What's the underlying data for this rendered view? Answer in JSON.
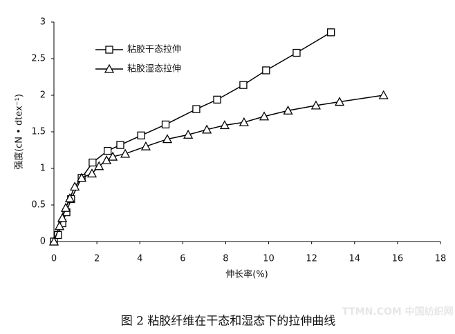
{
  "chart_data": {
    "type": "line",
    "xlabel": "伸长率(%)",
    "ylabel": "强度(cN • dtex⁻¹)",
    "caption": "图 2 粘胶纤维在干态和湿态下的拉伸曲线",
    "watermark": "TTMN.COM 中国纺织网",
    "xlim": [
      0,
      18
    ],
    "xticks": [
      0,
      2,
      4,
      6,
      8,
      10,
      12,
      14,
      16,
      18
    ],
    "ylim": [
      0,
      3
    ],
    "yticks": [
      0,
      0.5,
      1,
      1.5,
      2,
      2.5,
      3
    ],
    "series": [
      {
        "name": "粘胶干态拉伸",
        "color": "#000000",
        "marker": "square",
        "x": [
          0,
          0.19,
          0.39,
          0.58,
          0.8,
          1.29,
          1.8,
          2.5,
          3.09,
          4.06,
          5.2,
          6.63,
          7.6,
          8.82,
          9.88,
          11.3,
          12.9
        ],
        "values": [
          0,
          0.09,
          0.25,
          0.4,
          0.58,
          0.87,
          1.08,
          1.24,
          1.32,
          1.45,
          1.6,
          1.81,
          1.94,
          2.14,
          2.34,
          2.58,
          2.86
        ]
      },
      {
        "name": "粘胶湿态拉伸",
        "color": "#000000",
        "marker": "triangle",
        "x": [
          0,
          0.26,
          0.39,
          0.55,
          0.74,
          0.97,
          1.29,
          1.77,
          2.1,
          2.45,
          2.74,
          3.32,
          4.28,
          5.28,
          6.25,
          7.12,
          7.95,
          8.85,
          9.79,
          10.9,
          12.2,
          13.3,
          15.35
        ],
        "values": [
          0,
          0.21,
          0.32,
          0.46,
          0.59,
          0.75,
          0.87,
          0.93,
          1.03,
          1.11,
          1.16,
          1.2,
          1.3,
          1.4,
          1.46,
          1.53,
          1.59,
          1.63,
          1.71,
          1.79,
          1.86,
          1.91,
          2.0
        ]
      }
    ]
  }
}
